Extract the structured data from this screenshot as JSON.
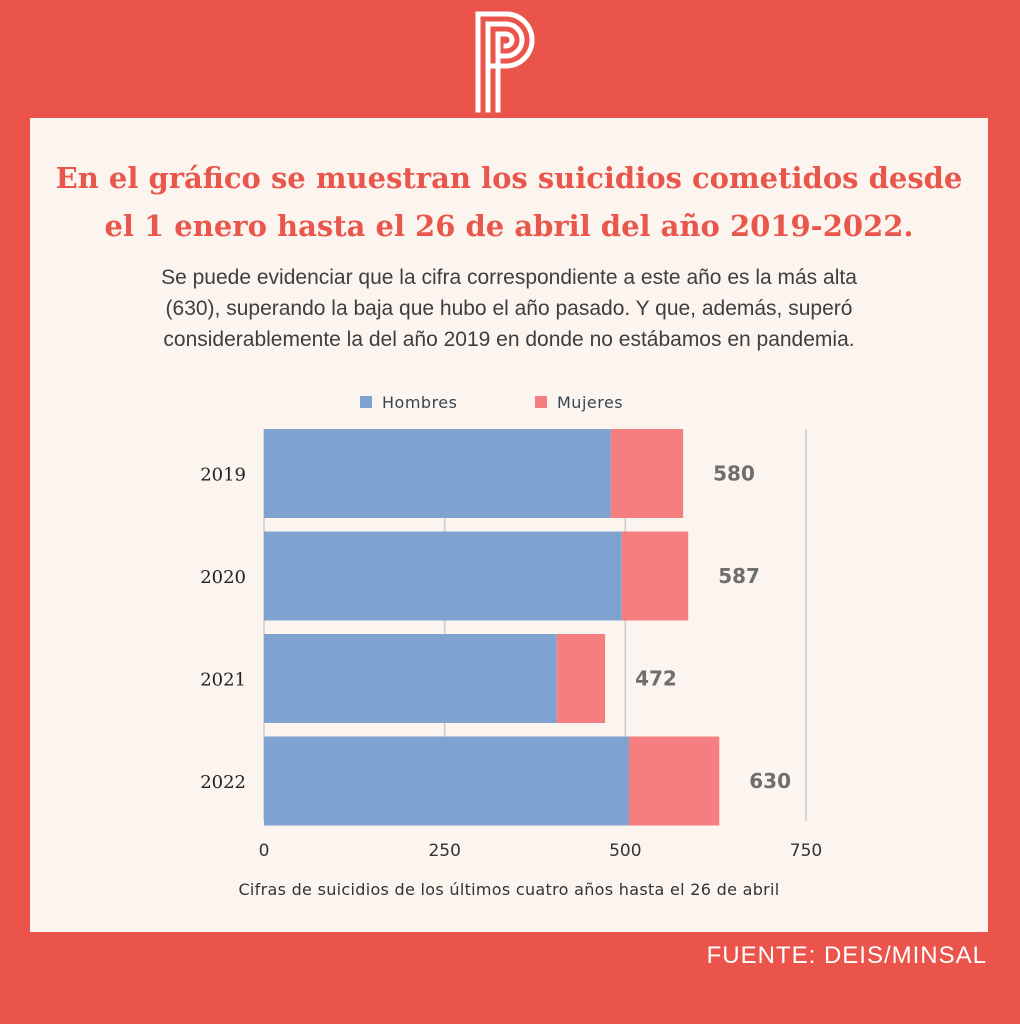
{
  "header": {
    "title_line1": "En el gráfico se muestran los suicidios cometidos desde",
    "title_line2": "el 1 enero hasta el 26 de abril del año 2019-2022.",
    "subtitle_line1": "Se puede evidenciar que la cifra correspondiente a este año es la más alta",
    "subtitle_line2": "(630), superando la baja que hubo el año pasado.  Y que, además, superó",
    "subtitle_line3": "considerablemente la del año 2019 en donde no estábamos en pandemia."
  },
  "logo": {
    "icon": "p-monogram-logo"
  },
  "colors": {
    "background": "#ea544a",
    "card": "#fcf4ee",
    "title": "#e8564c",
    "hombres": "#7fa3d0",
    "mujeres": "#f47e80",
    "total_label": "#6e6e6e"
  },
  "chart_data": {
    "type": "bar",
    "orientation": "horizontal",
    "stacked": true,
    "categories": [
      "2019",
      "2020",
      "2021",
      "2022"
    ],
    "series": [
      {
        "name": "Hombres",
        "values": [
          480,
          495,
          405,
          505
        ]
      },
      {
        "name": "Mujeres",
        "values": [
          100,
          92,
          67,
          125
        ]
      }
    ],
    "totals": [
      "580",
      "587",
      "472",
      "630"
    ],
    "xticks": [
      "0",
      "250",
      "500",
      "750"
    ],
    "xlim": [
      0,
      750
    ],
    "grid": true,
    "legend_position": "top-center",
    "xlabel": "Cifras de suicidios de los últimos cuatro años hasta el 26 de abril"
  },
  "source": "FUENTE: DEIS/MINSAL"
}
